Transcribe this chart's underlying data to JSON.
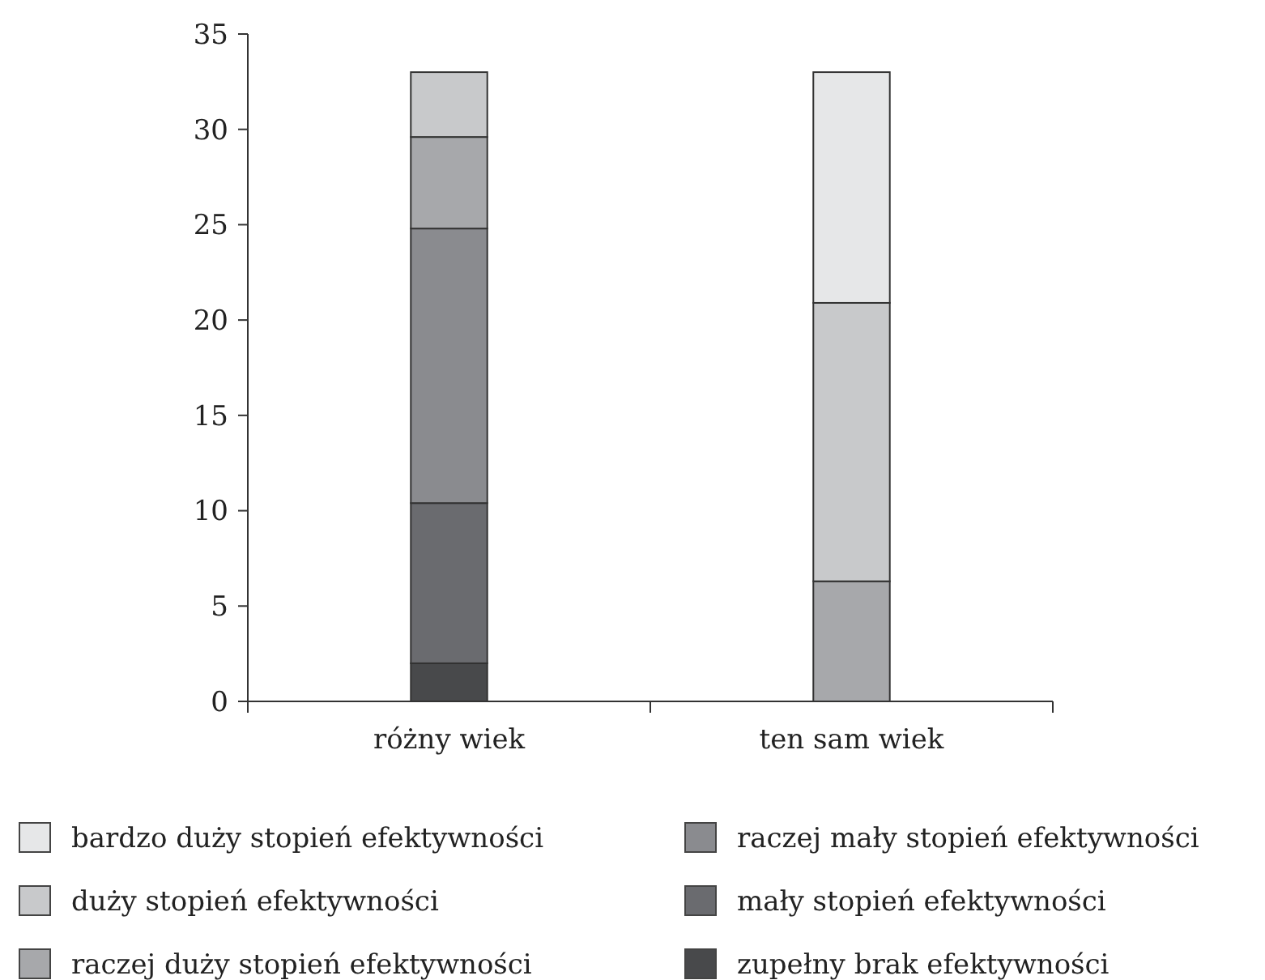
{
  "chart_data": {
    "type": "bar",
    "stacked": true,
    "categories": [
      "różny wiek",
      "ten sam wiek"
    ],
    "series": [
      {
        "name": "zupełny brak efektywności",
        "color": "#48494b",
        "values": [
          2,
          0
        ]
      },
      {
        "name": "mały stopień efektywności",
        "color": "#6a6b6f",
        "values": [
          8.4,
          0
        ]
      },
      {
        "name": "raczej mały stopień efektywności",
        "color": "#8a8b8f",
        "values": [
          14.4,
          0
        ]
      },
      {
        "name": "raczej duży stopień efektywności",
        "color": "#a7a8ab",
        "values": [
          4.8,
          6.3
        ]
      },
      {
        "name": "duży stopień efektywności",
        "color": "#c8c9cb",
        "values": [
          3.4,
          14.6
        ]
      },
      {
        "name": "bardzo duży stopień efektywności",
        "color": "#e6e7e8",
        "values": [
          0,
          12.1
        ]
      }
    ],
    "ylim": [
      0,
      35
    ],
    "yticks": [
      0,
      5,
      10,
      15,
      20,
      25,
      30,
      35
    ],
    "grid": false,
    "legend": "bottom"
  }
}
